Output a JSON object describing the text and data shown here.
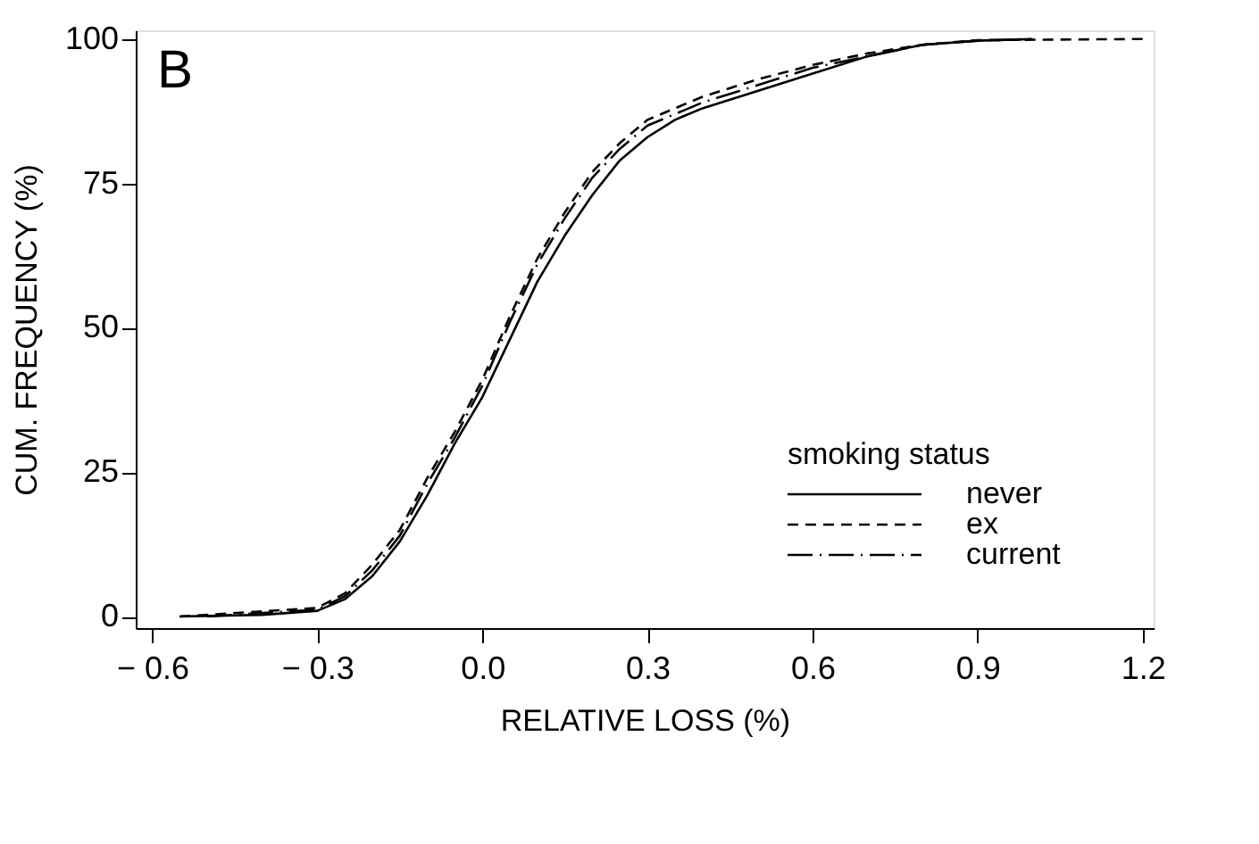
{
  "chart_data": {
    "type": "line",
    "xlabel": "RELATIVE LOSS (%)",
    "ylabel": "CUM. FREQUENCY (%)",
    "legend_title": "smoking status",
    "annotations": [
      "B"
    ],
    "xlim": [
      -0.63,
      1.22
    ],
    "ylim": [
      -2,
      101.5
    ],
    "xticks": [
      {
        "value": -0.6,
        "label": "− 0.6"
      },
      {
        "value": -0.3,
        "label": "− 0.3"
      },
      {
        "value": 0,
        "label": "0.0"
      },
      0.3,
      0.6,
      0.9,
      1.2
    ],
    "yticks": [
      0,
      25,
      50,
      75,
      100
    ],
    "grid": false,
    "legend": "bottom right",
    "marker": "none",
    "series": [
      {
        "name": "never",
        "color": "#000000",
        "line_style": "solid",
        "x": [
          -0.55,
          -0.4,
          -0.3,
          -0.25,
          -0.2,
          -0.15,
          -0.1,
          -0.05,
          0,
          0.05,
          0.1,
          0.15,
          0.2,
          0.25,
          0.3,
          0.35,
          0.4,
          0.5,
          0.6,
          0.7,
          0.8,
          0.9,
          1.0
        ],
        "values": [
          0,
          0.3,
          1,
          3,
          7,
          13,
          21,
          30,
          38,
          48,
          58,
          66,
          73,
          79,
          83,
          86,
          88,
          91,
          94,
          97,
          99,
          99.7,
          100
        ]
      },
      {
        "name": "ex",
        "color": "#000000",
        "line_style": "dashed",
        "x": [
          -0.55,
          -0.3,
          -0.25,
          -0.2,
          -0.15,
          -0.1,
          -0.05,
          0,
          0.05,
          0.1,
          0.15,
          0.2,
          0.25,
          0.3,
          0.4,
          0.5,
          0.6,
          0.7,
          0.8,
          0.9,
          1.2
        ],
        "values": [
          0,
          1.5,
          4,
          9,
          15,
          24,
          32,
          41,
          52,
          62,
          70,
          77,
          82,
          86,
          90,
          93,
          95.5,
          97.5,
          99,
          99.8,
          100
        ]
      },
      {
        "name": "current",
        "color": "#000000",
        "line_style": "dashdot",
        "x": [
          -0.5,
          -0.3,
          -0.25,
          -0.2,
          -0.15,
          -0.1,
          -0.05,
          0,
          0.05,
          0.1,
          0.15,
          0.2,
          0.25,
          0.3,
          0.4,
          0.5,
          0.6,
          0.7,
          0.8,
          0.9,
          1.0
        ],
        "values": [
          0,
          1.2,
          3.5,
          8,
          14,
          23,
          31,
          40,
          51,
          61,
          69,
          76,
          81,
          85,
          89,
          92,
          95,
          97,
          99,
          99.7,
          100
        ]
      }
    ]
  }
}
